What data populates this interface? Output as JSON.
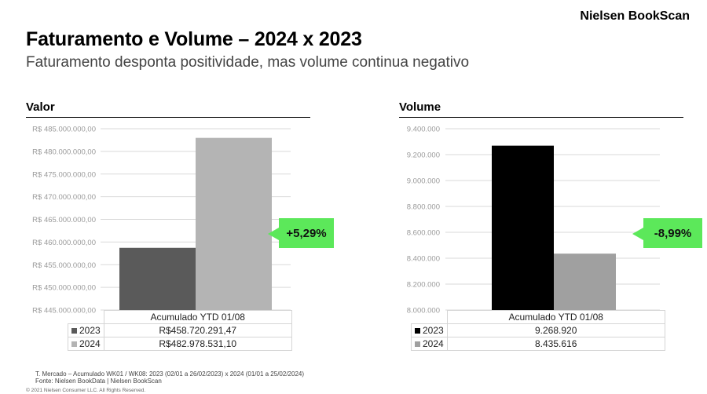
{
  "brand": "Nielsen BookScan",
  "title": "Faturamento e Volume – 2024 x 2023",
  "subtitle": "Faturamento desponta positividade, mas volume continua negativo",
  "footnote1": "T. Mercado – Acumulado WK01 / WK08: 2023 (02/01 a 26/02/2023) x 2024 (01/01 a 25/02/2024)",
  "footnote2": "Fonte: Nielsen BookData | Nielsen BookScan",
  "copyright": "© 2021 Nielsen Consumer LLC. All Rights Reserved.",
  "colors": {
    "badge": "#5ce85a",
    "valor_2023": "#5a5a5a",
    "valor_2024": "#b4b4b4",
    "volume_2023": "#000000",
    "volume_2024": "#a0a0a0",
    "grid": "#d9d9d9"
  },
  "chart_data": [
    {
      "type": "bar",
      "section_title": "Valor",
      "categories": [
        "Acumulado YTD 01/08"
      ],
      "series": [
        {
          "name": "2023",
          "values": [
            458720291.47
          ],
          "label": "R$458.720.291,47"
        },
        {
          "name": "2024",
          "values": [
            482978531.1
          ],
          "label": "R$482.978.531,10"
        }
      ],
      "yticks": [
        "R$ 445.000.000,00",
        "R$ 450.000.000,00",
        "R$ 455.000.000,00",
        "R$ 460.000.000,00",
        "R$ 465.000.000,00",
        "R$ 470.000.000,00",
        "R$ 475.000.000,00",
        "R$ 480.000.000,00",
        "R$ 485.000.000,00"
      ],
      "ylim": [
        445000000,
        485000000
      ],
      "grid": true,
      "legend": "data table below chart",
      "change_label": "+5,29%"
    },
    {
      "type": "bar",
      "section_title": "Volume",
      "categories": [
        "Acumulado YTD 01/08"
      ],
      "series": [
        {
          "name": "2023",
          "values": [
            9268920
          ],
          "label": "9.268.920"
        },
        {
          "name": "2024",
          "values": [
            8435616
          ],
          "label": "8.435.616"
        }
      ],
      "yticks": [
        "8.000.000",
        "8.200.000",
        "8.400.000",
        "8.600.000",
        "8.800.000",
        "9.000.000",
        "9.200.000",
        "9.400.000"
      ],
      "ylim": [
        8000000,
        9400000
      ],
      "grid": true,
      "legend": "data table below chart",
      "change_label": "-8,99%"
    }
  ]
}
